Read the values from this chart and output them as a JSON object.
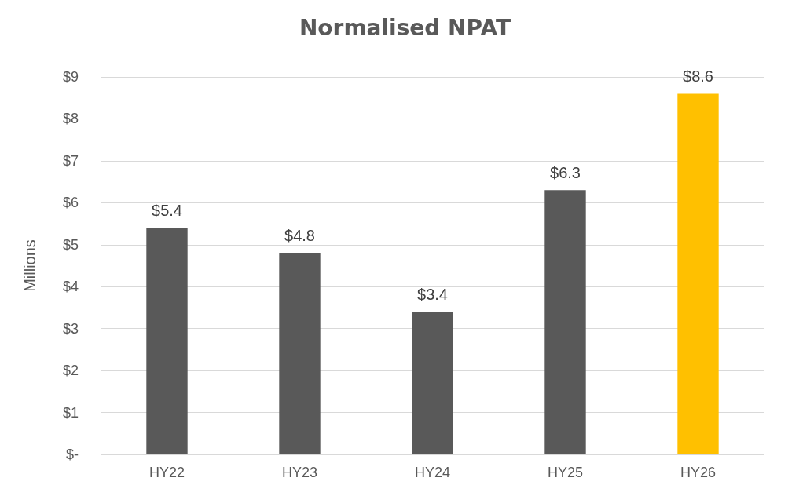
{
  "chart_data": {
    "type": "bar",
    "title": "Normalised NPAT",
    "ylabel": "Millions",
    "categories": [
      "HY22",
      "HY23",
      "HY24",
      "HY25",
      "HY26"
    ],
    "values": [
      5.4,
      4.8,
      3.4,
      6.3,
      8.6
    ],
    "colors": [
      "#595959",
      "#595959",
      "#595959",
      "#595959",
      "#ffc000"
    ],
    "value_labels": [
      "$5.4",
      "$4.8",
      "$3.4",
      "$6.3",
      "$8.6"
    ],
    "ylim": [
      0,
      9
    ],
    "yticks": [
      {
        "value": 0,
        "label": "$-"
      },
      {
        "value": 1,
        "label": "$1"
      },
      {
        "value": 2,
        "label": "$2"
      },
      {
        "value": 3,
        "label": "$3"
      },
      {
        "value": 4,
        "label": "$4"
      },
      {
        "value": 5,
        "label": "$5"
      },
      {
        "value": 6,
        "label": "$6"
      },
      {
        "value": 7,
        "label": "$7"
      },
      {
        "value": 8,
        "label": "$8"
      },
      {
        "value": 9,
        "label": "$9"
      }
    ],
    "grid": "y"
  }
}
